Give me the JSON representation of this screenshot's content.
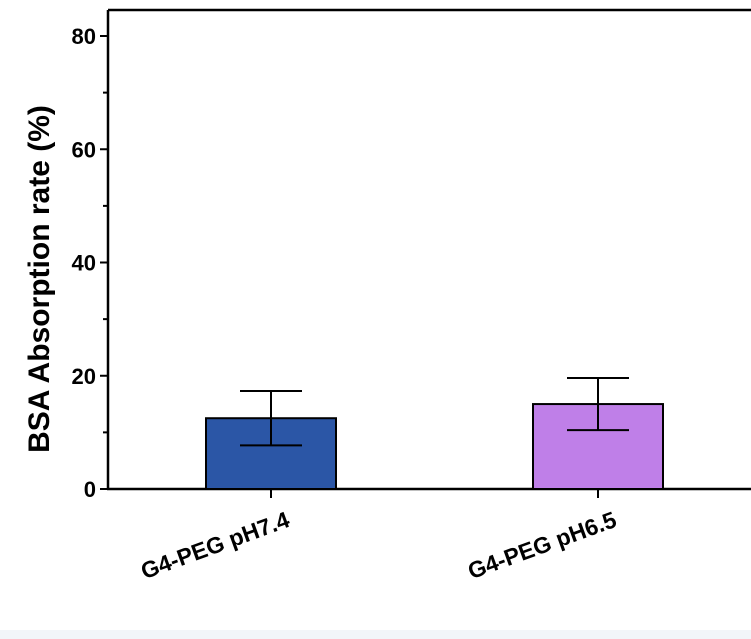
{
  "chart_data": {
    "type": "bar",
    "title": "",
    "xlabel": "",
    "ylabel": "BSA Absorption rate (%)",
    "ylim": [
      0,
      85
    ],
    "yticks": [
      0,
      20,
      40,
      60,
      80
    ],
    "grid": false,
    "legend": "none",
    "categories": [
      "G4-PEG pH7.4",
      "G4-PEG pH6.5"
    ],
    "values": [
      12.5,
      15.0
    ],
    "errors": [
      4.8,
      4.6
    ],
    "colors": [
      "#2b56a6",
      "#bf7fe8"
    ]
  }
}
